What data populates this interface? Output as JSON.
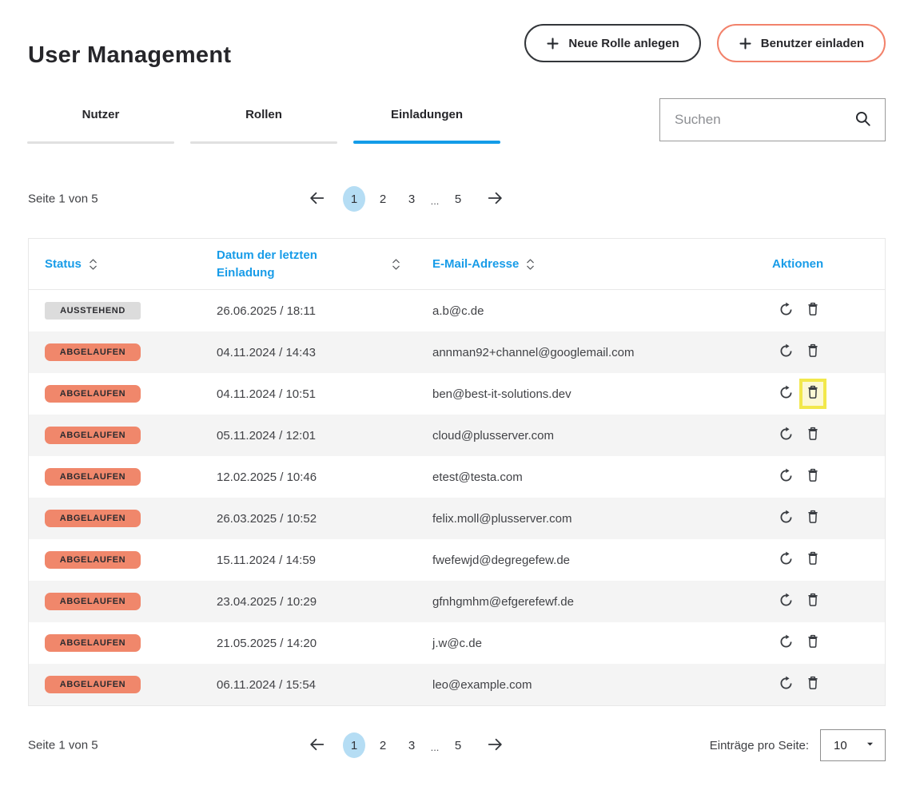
{
  "page": {
    "title": "User Management"
  },
  "buttons": {
    "new_role_label": "Neue Rolle anlegen",
    "invite_user_label": "Benutzer einladen"
  },
  "tabs": [
    {
      "label": "Nutzer",
      "active": false
    },
    {
      "label": "Rollen",
      "active": false
    },
    {
      "label": "Einladungen",
      "active": true
    }
  ],
  "search": {
    "placeholder": "Suchen"
  },
  "pagination": {
    "page_info": "Seite 1 von 5",
    "pages": [
      "1",
      "2",
      "3",
      "...",
      "5"
    ],
    "active_page": "1",
    "per_page_label": "Einträge pro Seite:",
    "per_page_value": "10"
  },
  "table": {
    "columns": [
      {
        "label": "Status",
        "sortable": true
      },
      {
        "label": "Datum der letzten Einladung",
        "sortable": true
      },
      {
        "label": "E-Mail-Adresse",
        "sortable": true
      },
      {
        "label": "Aktionen",
        "sortable": false
      }
    ],
    "rows": [
      {
        "status": "AUSSTEHEND",
        "status_type": "pending",
        "date": "26.06.2025 / 18:11",
        "email": "a.b@c.de",
        "highlight_delete": false
      },
      {
        "status": "ABGELAUFEN",
        "status_type": "expired",
        "date": "04.11.2024 / 14:43",
        "email": "annman92+channel@googlemail.com",
        "highlight_delete": false
      },
      {
        "status": "ABGELAUFEN",
        "status_type": "expired",
        "date": "04.11.2024 / 10:51",
        "email": "ben@best-it-solutions.dev",
        "highlight_delete": true
      },
      {
        "status": "ABGELAUFEN",
        "status_type": "expired",
        "date": "05.11.2024 / 12:01",
        "email": "cloud@plusserver.com",
        "highlight_delete": false
      },
      {
        "status": "ABGELAUFEN",
        "status_type": "expired",
        "date": "12.02.2025 / 10:46",
        "email": "etest@testa.com",
        "highlight_delete": false
      },
      {
        "status": "ABGELAUFEN",
        "status_type": "expired",
        "date": "26.03.2025 / 10:52",
        "email": "felix.moll@plusserver.com",
        "highlight_delete": false
      },
      {
        "status": "ABGELAUFEN",
        "status_type": "expired",
        "date": "15.11.2024 / 14:59",
        "email": "fwefewjd@degregefew.de",
        "highlight_delete": false
      },
      {
        "status": "ABGELAUFEN",
        "status_type": "expired",
        "date": "23.04.2025 / 10:29",
        "email": "gfnhgmhm@efgerefewf.de",
        "highlight_delete": false
      },
      {
        "status": "ABGELAUFEN",
        "status_type": "expired",
        "date": "21.05.2025 / 14:20",
        "email": "j.w@c.de",
        "highlight_delete": false
      },
      {
        "status": "ABGELAUFEN",
        "status_type": "expired",
        "date": "06.11.2024 / 15:54",
        "email": "leo@example.com",
        "highlight_delete": false
      }
    ]
  },
  "icons": {
    "plus": "plus-sign",
    "search": "magnifier",
    "sort": "up-down-chevrons",
    "prev": "arrow-left",
    "next": "arrow-right",
    "refresh": "circular-arrow-resend",
    "delete": "trash-can",
    "dropdown": "caret-down"
  },
  "colors": {
    "accent_blue": "#149ce8",
    "header_text_blue": "#189ce8",
    "badge_expired": "#f0876b",
    "badge_pending": "#dcdcdc",
    "invite_button_border": "#f2826b",
    "dark_button_border": "#33363a",
    "row_alt_background": "#f4f4f4",
    "active_page_background": "#b5ddf4",
    "highlight_yellow_border": "#f2e84b",
    "highlight_yellow_fill": "#fcf8d4"
  }
}
